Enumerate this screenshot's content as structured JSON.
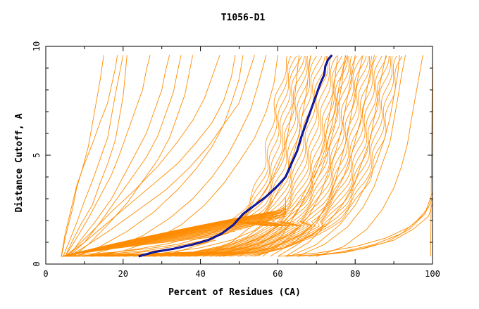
{
  "chart_data": {
    "type": "line",
    "title": "T1056-D1",
    "xlabel": "Percent of Residues (CA)",
    "ylabel": "Distance Cutoff, A",
    "xlim": [
      0,
      100
    ],
    "ylim": [
      0,
      10
    ],
    "x_ticks": [
      0,
      20,
      40,
      60,
      80,
      100
    ],
    "y_ticks": [
      0,
      5,
      10
    ],
    "x_tick_labels": [
      "0",
      "20",
      "40",
      "60",
      "80",
      "100"
    ],
    "y_tick_labels": [
      "0",
      "5",
      "10"
    ],
    "grid": false,
    "legend": "none",
    "colors": {
      "models": "#ff8c00",
      "highlight": "#000080"
    },
    "highlight_series": {
      "x": [
        24,
        28,
        33,
        38,
        42,
        45.5,
        48.5,
        51,
        54,
        57,
        60,
        62,
        63.5,
        65,
        66,
        67,
        68,
        69,
        70,
        71,
        72,
        72.3,
        73,
        74
      ],
      "y": [
        0.35,
        0.55,
        0.7,
        0.9,
        1.1,
        1.4,
        1.8,
        2.3,
        2.7,
        3.1,
        3.6,
        4.0,
        4.6,
        5.2,
        5.8,
        6.3,
        6.8,
        7.3,
        7.8,
        8.3,
        8.7,
        9.1,
        9.4,
        9.6
      ]
    },
    "model_band_upper": {
      "x": [
        4,
        12,
        20,
        28,
        35,
        42,
        48,
        53,
        58,
        62,
        65,
        66.5,
        67.5,
        68.5,
        69,
        69.5,
        70
      ],
      "y": [
        0.35,
        0.5,
        0.65,
        0.8,
        1.0,
        1.4,
        1.9,
        2.5,
        3.1,
        3.7,
        4.5,
        5.3,
        6.2,
        7.2,
        8.0,
        8.8,
        9.6
      ]
    },
    "model_band_lower": {
      "x": [
        4,
        20,
        36,
        46,
        54,
        60,
        64,
        67,
        69,
        70
      ],
      "y": [
        0.35,
        0.4,
        0.5,
        0.8,
        1.3,
        2.0,
        3.0,
        4.5,
        6.5,
        9.6
      ]
    },
    "model_band_left": {
      "x": [
        47,
        49,
        52,
        54,
        56,
        57,
        58,
        59,
        60,
        61,
        62,
        62.5,
        63
      ],
      "y": [
        1.9,
        2.2,
        2.7,
        3.4,
        4.3,
        5.2,
        6.1,
        7.0,
        7.8,
        8.5,
        9.0,
        9.3,
        9.6
      ]
    },
    "model_band_right": {
      "x": [
        54,
        62,
        70,
        76,
        80,
        83,
        85,
        87,
        88.5,
        90,
        92
      ],
      "y": [
        0.4,
        0.7,
        1.3,
        2.0,
        2.8,
        3.7,
        4.6,
        5.7,
        6.9,
        8.2,
        9.6
      ]
    },
    "model_series": [
      {
        "x": [
          4,
          4.5,
          5,
          6,
          7,
          8,
          9.5,
          11,
          12,
          13,
          14,
          15
        ],
        "y": [
          0.35,
          0.7,
          1.2,
          1.9,
          2.6,
          3.5,
          4.4,
          5.4,
          6.4,
          7.4,
          8.4,
          9.6
        ]
      },
      {
        "x": [
          4.5,
          6,
          8,
          10,
          12,
          14,
          16,
          17,
          18,
          19,
          20
        ],
        "y": [
          0.35,
          1.0,
          1.9,
          2.9,
          3.8,
          4.8,
          5.8,
          6.8,
          7.8,
          8.7,
          9.6
        ]
      },
      {
        "x": [
          5,
          7,
          9,
          12,
          14,
          16,
          18,
          19,
          20,
          20.5,
          21
        ],
        "y": [
          0.35,
          1.1,
          1.8,
          2.7,
          3.7,
          4.6,
          5.7,
          6.7,
          7.7,
          8.6,
          9.6
        ]
      },
      {
        "x": [
          5,
          8,
          11,
          14,
          17,
          19,
          21,
          23,
          25,
          26,
          27
        ],
        "y": [
          0.35,
          1.2,
          2.1,
          3.1,
          4.1,
          5.0,
          6.0,
          7.0,
          8.0,
          8.9,
          9.6
        ]
      },
      {
        "x": [
          6,
          9,
          13,
          17,
          20,
          23,
          26,
          28,
          30,
          31,
          32
        ],
        "y": [
          0.35,
          1.1,
          2.0,
          3.0,
          4.0,
          5.0,
          6.0,
          7.0,
          8.0,
          8.9,
          9.6
        ]
      },
      {
        "x": [
          6,
          10,
          14,
          18,
          22,
          26,
          29,
          31,
          33,
          34,
          35
        ],
        "y": [
          0.35,
          1.0,
          1.9,
          2.9,
          3.9,
          4.9,
          5.9,
          6.9,
          7.9,
          8.8,
          9.6
        ]
      },
      {
        "x": [
          7,
          11,
          16,
          21,
          25,
          29,
          32,
          34,
          36,
          37,
          38
        ],
        "y": [
          0.35,
          0.9,
          1.8,
          2.8,
          3.8,
          4.8,
          5.8,
          6.8,
          7.8,
          8.7,
          9.6
        ]
      },
      {
        "x": [
          4,
          5,
          6.5,
          8,
          10,
          12,
          14,
          16,
          17,
          18,
          18.5
        ],
        "y": [
          0.35,
          1.4,
          2.5,
          3.6,
          4.6,
          5.5,
          6.5,
          7.4,
          8.2,
          9.0,
          9.6
        ]
      },
      {
        "x": [
          5,
          8,
          12,
          17,
          23,
          29,
          34,
          38,
          41,
          43,
          45
        ],
        "y": [
          0.35,
          0.8,
          1.5,
          2.4,
          3.4,
          4.5,
          5.6,
          6.6,
          7.6,
          8.6,
          9.6
        ]
      },
      {
        "x": [
          8,
          14,
          21,
          28,
          34,
          39,
          43,
          46,
          48,
          50,
          51
        ],
        "y": [
          0.35,
          0.8,
          1.5,
          2.4,
          3.4,
          4.4,
          5.4,
          6.4,
          7.4,
          8.5,
          9.6
        ]
      },
      {
        "x": [
          10,
          17,
          25,
          32,
          38,
          43,
          47,
          50,
          53,
          55,
          57
        ],
        "y": [
          0.35,
          0.7,
          1.3,
          2.1,
          3.0,
          4.0,
          5.0,
          6.0,
          7.1,
          8.3,
          9.6
        ]
      },
      {
        "x": [
          12,
          20,
          28,
          35,
          41,
          46,
          50,
          54,
          57,
          59,
          60
        ],
        "y": [
          0.35,
          0.6,
          1.1,
          1.8,
          2.7,
          3.7,
          4.7,
          5.8,
          7.0,
          8.3,
          9.6
        ]
      },
      {
        "x": [
          5,
          10,
          16,
          22,
          28,
          34,
          39,
          43,
          46,
          48,
          49
        ],
        "y": [
          0.35,
          1.0,
          1.9,
          2.8,
          3.7,
          4.6,
          5.6,
          6.5,
          7.5,
          8.6,
          9.6
        ]
      },
      {
        "x": [
          6,
          11,
          17,
          24,
          31,
          37,
          42,
          46,
          50,
          52,
          54
        ],
        "y": [
          0.35,
          0.9,
          1.6,
          2.5,
          3.4,
          4.4,
          5.4,
          6.4,
          7.4,
          8.5,
          9.6
        ]
      },
      {
        "x": [
          60,
          66,
          70,
          73,
          75,
          76.5,
          78,
          79,
          80,
          81,
          82
        ],
        "y": [
          0.35,
          1.0,
          1.9,
          2.9,
          3.9,
          4.9,
          5.9,
          6.9,
          7.9,
          8.8,
          9.6
        ]
      },
      {
        "x": [
          62,
          68,
          73,
          77,
          80,
          82,
          84,
          85,
          86,
          87,
          88
        ],
        "y": [
          0.35,
          1.0,
          1.9,
          2.8,
          3.8,
          4.8,
          5.8,
          6.8,
          7.8,
          8.8,
          9.6
        ]
      },
      {
        "x": [
          65,
          72,
          78,
          82,
          85,
          87,
          89,
          90,
          91,
          92,
          93
        ],
        "y": [
          0.35,
          0.9,
          1.7,
          2.6,
          3.6,
          4.6,
          5.6,
          6.6,
          7.6,
          8.7,
          9.6
        ]
      },
      {
        "x": [
          70,
          77,
          83,
          87,
          90,
          92,
          93.5,
          94.5,
          95.5,
          96.5,
          97.5
        ],
        "y": [
          0.35,
          0.8,
          1.6,
          2.5,
          3.5,
          4.5,
          5.5,
          6.6,
          7.6,
          8.6,
          9.6
        ]
      },
      {
        "x": [
          58,
          65,
          70,
          74,
          77,
          79,
          80.5,
          82,
          83,
          84,
          85
        ],
        "y": [
          0.35,
          1.1,
          2.0,
          3.0,
          4.0,
          5.0,
          6.0,
          7.0,
          8.0,
          8.9,
          9.6
        ]
      },
      {
        "x": [
          56,
          63,
          68,
          71,
          73,
          75,
          76.5,
          77.5,
          78.5,
          79.5,
          80
        ],
        "y": [
          0.35,
          1.2,
          2.2,
          3.2,
          4.2,
          5.2,
          6.2,
          7.2,
          8.1,
          9.0,
          9.6
        ]
      },
      {
        "x": [
          55,
          61,
          65,
          68,
          70.5,
          72.5,
          74,
          75,
          76,
          77,
          77.5
        ],
        "y": [
          0.35,
          1.3,
          2.4,
          3.4,
          4.4,
          5.4,
          6.4,
          7.4,
          8.3,
          9.1,
          9.6
        ]
      },
      {
        "x": [
          63,
          70,
          76,
          80,
          83,
          85.5,
          87.5,
          89,
          90,
          91,
          91.5
        ],
        "y": [
          0.35,
          0.9,
          1.8,
          2.7,
          3.7,
          4.7,
          5.7,
          6.7,
          7.7,
          8.7,
          9.6
        ]
      },
      {
        "x": [
          38,
          48,
          55,
          59,
          62,
          64,
          65.5,
          66.5,
          67.5,
          68,
          68.5
        ],
        "y": [
          0.35,
          1.0,
          2.0,
          3.0,
          4.0,
          5.0,
          6.0,
          7.0,
          8.0,
          8.9,
          9.6
        ]
      },
      {
        "x": [
          30,
          42,
          50,
          55,
          58.5,
          61,
          62.5,
          63.5,
          64.5,
          65,
          65.5
        ],
        "y": [
          0.35,
          1.0,
          1.9,
          2.9,
          3.9,
          4.9,
          5.9,
          6.9,
          7.9,
          8.8,
          9.6
        ]
      },
      {
        "x": [
          50,
          58,
          64,
          68,
          71,
          73,
          74.5,
          75.5,
          76.5,
          77,
          78
        ],
        "y": [
          0.35,
          1.2,
          2.2,
          3.2,
          4.2,
          5.2,
          6.2,
          7.2,
          8.2,
          9.0,
          9.6
        ]
      },
      {
        "x": [
          45,
          55,
          62,
          66,
          69,
          71,
          72.5,
          73.5,
          74.5,
          75,
          75.5
        ],
        "y": [
          0.35,
          1.1,
          2.0,
          3.0,
          4.0,
          5.0,
          6.0,
          7.0,
          8.0,
          8.9,
          9.6
        ]
      },
      {
        "x": [
          99.5,
          99.6,
          99.7,
          99.8,
          99.9,
          100
        ],
        "y": [
          0.35,
          2.0,
          4.0,
          6.0,
          8.0,
          9.6
        ]
      },
      {
        "x": [
          60,
          70,
          80,
          88,
          94,
          98,
          100
        ],
        "y": [
          0.35,
          0.5,
          0.8,
          1.2,
          1.7,
          2.3,
          3.0
        ]
      },
      {
        "x": [
          62,
          72,
          82,
          90,
          95,
          99,
          100
        ],
        "y": [
          0.35,
          0.45,
          0.7,
          1.1,
          1.6,
          2.2,
          2.8
        ]
      },
      {
        "x": [
          65,
          75,
          85,
          92,
          96,
          99
        ],
        "y": [
          0.35,
          0.5,
          0.9,
          1.4,
          2.0,
          2.6
        ]
      },
      {
        "x": [
          68,
          78,
          88,
          94,
          98,
          100
        ],
        "y": [
          0.35,
          0.55,
          1.0,
          1.6,
          2.3,
          3.3
        ]
      },
      {
        "x": [
          4,
          10,
          18,
          26,
          34,
          40,
          45,
          48
        ],
        "y": [
          0.35,
          0.45,
          0.55,
          0.7,
          0.9,
          1.2,
          1.6,
          2.0
        ]
      },
      {
        "x": [
          4,
          12,
          22,
          30,
          38,
          44
        ],
        "y": [
          0.35,
          0.4,
          0.5,
          0.65,
          0.85,
          1.1
        ]
      },
      {
        "x": [
          5,
          15,
          25,
          33,
          40,
          46,
          50
        ],
        "y": [
          0.35,
          0.45,
          0.6,
          0.8,
          1.05,
          1.35,
          1.7
        ]
      },
      {
        "x": [
          8,
          16,
          24,
          32,
          38,
          43
        ],
        "y": [
          0.35,
          0.5,
          0.7,
          0.95,
          1.25,
          1.6
        ]
      },
      {
        "x": [
          20,
          30,
          40,
          48,
          54,
          58
        ],
        "y": [
          0.35,
          0.5,
          0.75,
          1.1,
          1.55,
          2.1
        ]
      },
      {
        "x": [
          28,
          38,
          46,
          52,
          56,
          59
        ],
        "y": [
          0.35,
          0.55,
          0.85,
          1.25,
          1.75,
          2.3
        ]
      }
    ]
  }
}
